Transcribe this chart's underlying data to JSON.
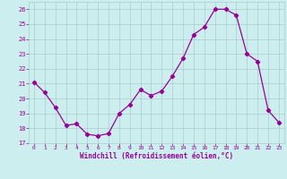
{
  "x": [
    0,
    1,
    2,
    3,
    4,
    5,
    6,
    7,
    8,
    9,
    10,
    11,
    12,
    13,
    14,
    15,
    16,
    17,
    18,
    19,
    20,
    21,
    22,
    23
  ],
  "y": [
    21.1,
    20.4,
    19.4,
    18.2,
    18.3,
    17.6,
    17.5,
    17.65,
    19.0,
    19.6,
    20.6,
    20.2,
    20.5,
    21.5,
    22.7,
    24.3,
    24.8,
    26.0,
    26.0,
    25.6,
    23.0,
    22.5,
    19.2,
    18.4
  ],
  "line_color": "#990099",
  "marker": "D",
  "marker_size": 2.2,
  "bg_color": "#cceeee",
  "grid_color": "#aacccc",
  "xlabel": "Windchill (Refroidissement éolien,°C)",
  "xlim": [
    -0.5,
    23.5
  ],
  "ylim": [
    17,
    26.5
  ],
  "yticks": [
    17,
    18,
    19,
    20,
    21,
    22,
    23,
    24,
    25,
    26
  ],
  "xticks": [
    0,
    1,
    2,
    3,
    4,
    5,
    6,
    7,
    8,
    9,
    10,
    11,
    12,
    13,
    14,
    15,
    16,
    17,
    18,
    19,
    20,
    21,
    22,
    23
  ],
  "tick_color": "#990099",
  "label_color": "#990099",
  "font": "monospace"
}
